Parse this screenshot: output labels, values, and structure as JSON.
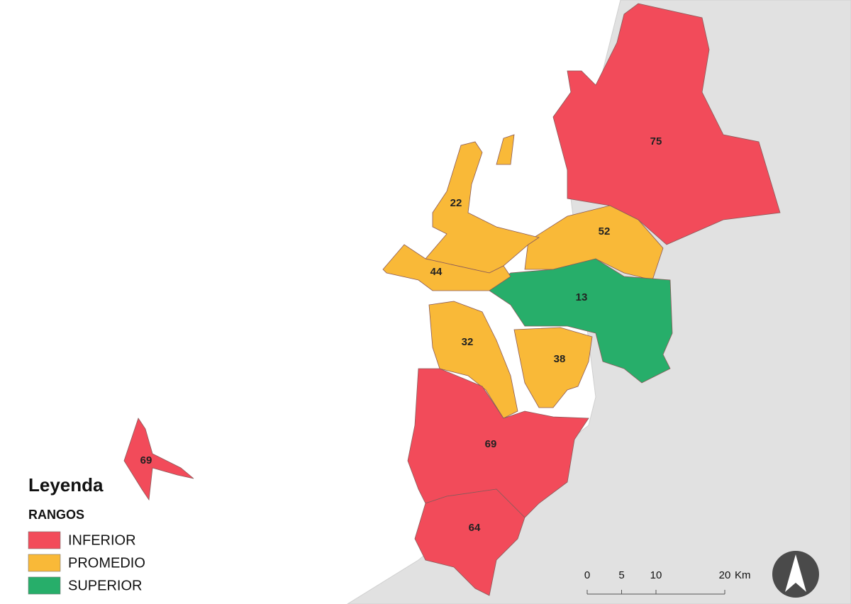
{
  "legend": {
    "title": "Leyenda",
    "subtitle": "RANGOS",
    "items": [
      {
        "name": "INFERIOR",
        "color": "#f24b5a"
      },
      {
        "name": "PROMEDIO",
        "color": "#f9b938"
      },
      {
        "name": "SUPERIOR",
        "color": "#27ae6a"
      }
    ]
  },
  "regions": [
    {
      "label": 75,
      "range": "INFERIOR"
    },
    {
      "label": 52,
      "range": "PROMEDIO"
    },
    {
      "label": 13,
      "range": "SUPERIOR"
    },
    {
      "label": 22,
      "range": "PROMEDIO"
    },
    {
      "label": 44,
      "range": "PROMEDIO"
    },
    {
      "label": 32,
      "range": "PROMEDIO"
    },
    {
      "label": 38,
      "range": "PROMEDIO"
    },
    {
      "label": 69,
      "range": "INFERIOR"
    },
    {
      "label": 64,
      "range": "INFERIOR"
    },
    {
      "label": 69,
      "range": "INFERIOR"
    }
  ],
  "scale_bar": {
    "ticks": [
      0,
      5,
      10,
      20
    ],
    "unit": "Km"
  }
}
